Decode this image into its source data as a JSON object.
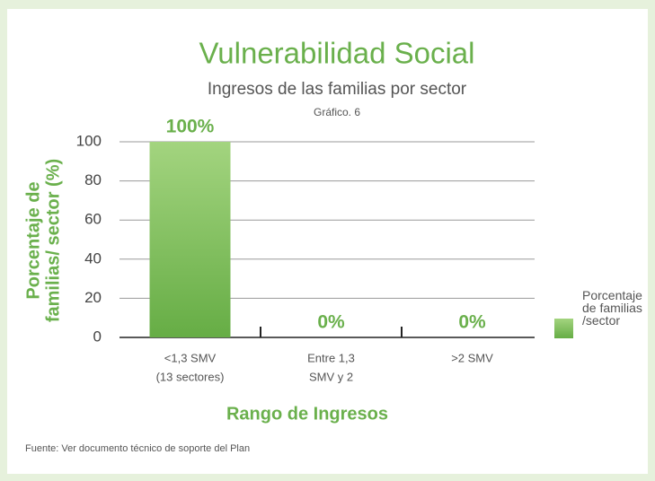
{
  "chart_data": {
    "type": "bar",
    "title": "Vulnerabilidad Social",
    "subtitle": "Ingresos de las familias por sector",
    "caption": "Gráfico. 6",
    "y_label": [
      "Porcentaje de",
      "familias/ sector (%)"
    ],
    "x_label": "Rango de Ingresos",
    "categories": [
      [
        "<1,3 SMV",
        "(13 sectores)"
      ],
      [
        "Entre 1,3",
        "SMV y 2"
      ],
      [
        ">2 SMV"
      ]
    ],
    "series": [
      {
        "name": "Porcentaje de familias /sector",
        "color": "#72b650",
        "values": [
          100,
          0,
          0
        ],
        "value_labels": [
          "100%",
          "0%",
          "0%"
        ]
      }
    ],
    "ylim": [
      0,
      100
    ],
    "yticks": [
      0,
      20,
      40,
      60,
      80,
      100
    ],
    "grid": true,
    "source": "Fuente: Ver documento técnico de soporte del Plan"
  }
}
